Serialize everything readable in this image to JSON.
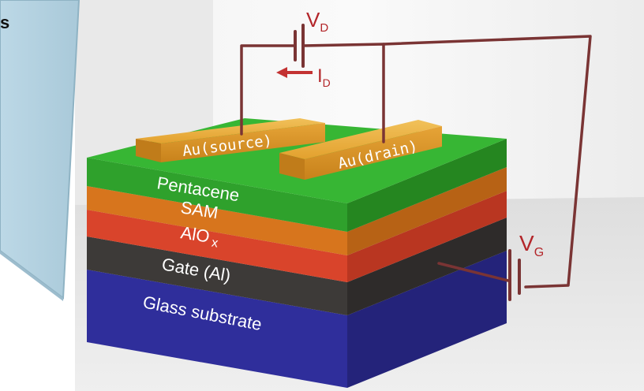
{
  "side_panel": {
    "text": "s"
  },
  "circuit": {
    "drain_voltage": {
      "main": "V",
      "sub": "D"
    },
    "drain_current": {
      "main": "I",
      "sub": "D"
    },
    "gate_voltage": {
      "main": "V",
      "sub": "G"
    }
  },
  "electrodes": {
    "source": "Au(source)",
    "drain": "Au(drain)"
  },
  "layers": {
    "pentacene": "Pentacene",
    "sam": "SAM",
    "dielectric": {
      "main": "AlO",
      "sub": "x"
    },
    "gate": "Gate (Al)",
    "substrate": "Glass substrate"
  },
  "colors": {
    "wire": "#7a3434",
    "label_red": "#b3262a",
    "pentacene": "#2fa12c",
    "sam": "#d7751d",
    "dielectric": "#d9442b",
    "gate": "#3d3a38",
    "substrate": "#2f2e9b",
    "gold": "#e3a12e"
  }
}
